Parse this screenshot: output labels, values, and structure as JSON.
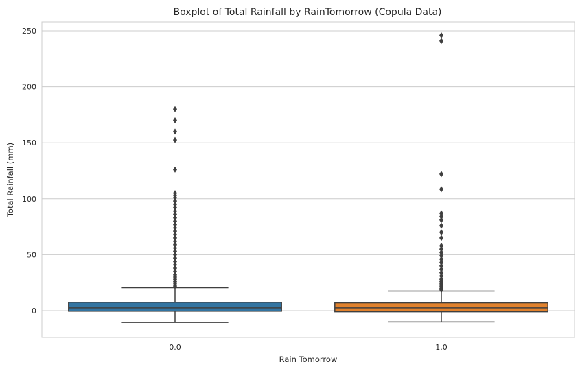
{
  "chart_data": {
    "type": "boxplot",
    "title": "Boxplot of Total Rainfall by RainTomorrow (Copula Data)",
    "xlabel": "Rain Tomorrow",
    "ylabel": "Total Rainfall (mm)",
    "ylim": [
      -24,
      258
    ],
    "yticks": [
      0,
      50,
      100,
      150,
      200,
      250
    ],
    "grid": "horizontal",
    "categories": [
      "0.0",
      "1.0"
    ],
    "boxes": [
      {
        "category": "0.0",
        "color": "#3274a1",
        "whisker_low": -10.5,
        "q1": -0.5,
        "median": 2.5,
        "q3": 7.5,
        "whisker_high": 20.5,
        "outliers": [
          180,
          170,
          160,
          152.5,
          126,
          105,
          103,
          101,
          98,
          95,
          92,
          89,
          86,
          83,
          80,
          77,
          74,
          71,
          68,
          65,
          62,
          59,
          56,
          53,
          50,
          47,
          44,
          41,
          38,
          35,
          32,
          30,
          28,
          26,
          24.5,
          23,
          22
        ]
      },
      {
        "category": "1.0",
        "color": "#e1812c",
        "whisker_low": -10,
        "q1": -1,
        "median": 2.5,
        "q3": 7,
        "whisker_high": 17.5,
        "outliers": [
          246,
          241,
          122,
          108.5,
          87,
          84,
          81,
          76,
          70,
          65,
          58,
          55,
          52,
          49,
          46,
          43,
          40,
          37,
          34,
          31,
          28,
          26,
          24,
          22,
          20,
          18.5
        ]
      }
    ]
  }
}
